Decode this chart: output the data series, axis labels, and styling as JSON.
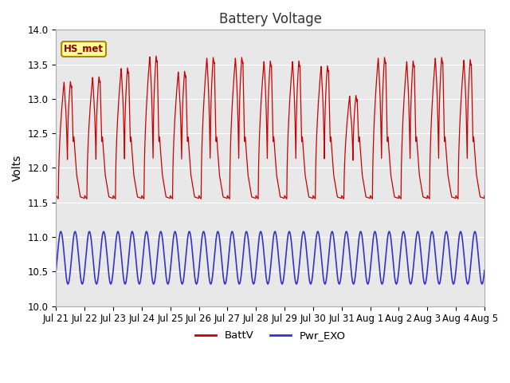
{
  "title": "Battery Voltage",
  "ylabel": "Volts",
  "ylim": [
    10.0,
    14.0
  ],
  "yticks": [
    10.0,
    10.5,
    11.0,
    11.5,
    12.0,
    12.5,
    13.0,
    13.5,
    14.0
  ],
  "xtick_labels": [
    "Jul 21",
    "Jul 22",
    "Jul 23",
    "Jul 24",
    "Jul 25",
    "Jul 26",
    "Jul 27",
    "Jul 28",
    "Jul 29",
    "Jul 30",
    "Jul 31",
    "Aug 1",
    "Aug 2",
    "Aug 3",
    "Aug 4",
    "Aug 5"
  ],
  "battv_color": "#cc0000",
  "pwr_exo_color": "#3333cc",
  "bg_color": "#e8e8e8",
  "fig_bg": "#ffffff",
  "legend_labels": [
    "BattV",
    "Pwr_EXO"
  ],
  "station_label": "HS_met",
  "station_label_bg": "#ffff99",
  "station_label_border": "#996600",
  "title_fontsize": 12,
  "axis_fontsize": 10,
  "tick_fontsize": 8.5,
  "n_days": 15,
  "points_per_day": 144
}
